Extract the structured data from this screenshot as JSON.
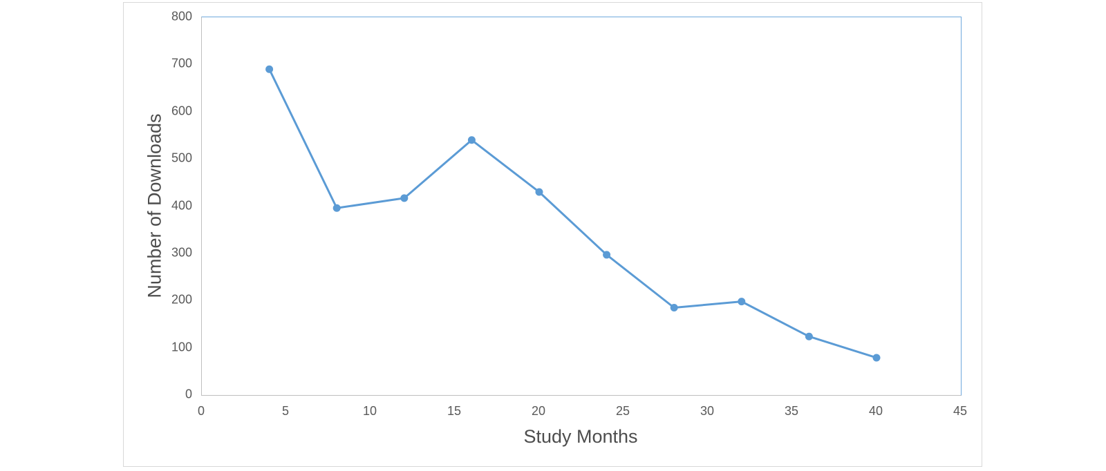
{
  "chart_data": {
    "type": "line",
    "title": "",
    "xlabel": "Study Months",
    "ylabel": "Number of Downloads",
    "x": [
      4,
      8,
      12,
      16,
      20,
      24,
      28,
      32,
      36,
      40
    ],
    "values": [
      690,
      396,
      417,
      540,
      430,
      297,
      185,
      198,
      124,
      79
    ],
    "series_name": "",
    "xlim": [
      0,
      45
    ],
    "ylim": [
      0,
      800
    ],
    "x_ticks": [
      0,
      5,
      10,
      15,
      20,
      25,
      30,
      35,
      40,
      45
    ],
    "y_ticks": [
      0,
      100,
      200,
      300,
      400,
      500,
      600,
      700,
      800
    ],
    "grid": false,
    "legend": "none",
    "marker": "circle"
  },
  "colors": {
    "series_line": "#5B9BD5",
    "marker_fill": "#5B9BD5",
    "plot_border": "#6FA8DC",
    "axis_line": "#BFBFBF",
    "tick_label": "#595959",
    "axis_title": "#4D4D4D",
    "card_border": "#D8D8D8",
    "background": "#FFFFFF"
  },
  "style": {
    "line_width": 3,
    "marker_radius": 5.5
  }
}
